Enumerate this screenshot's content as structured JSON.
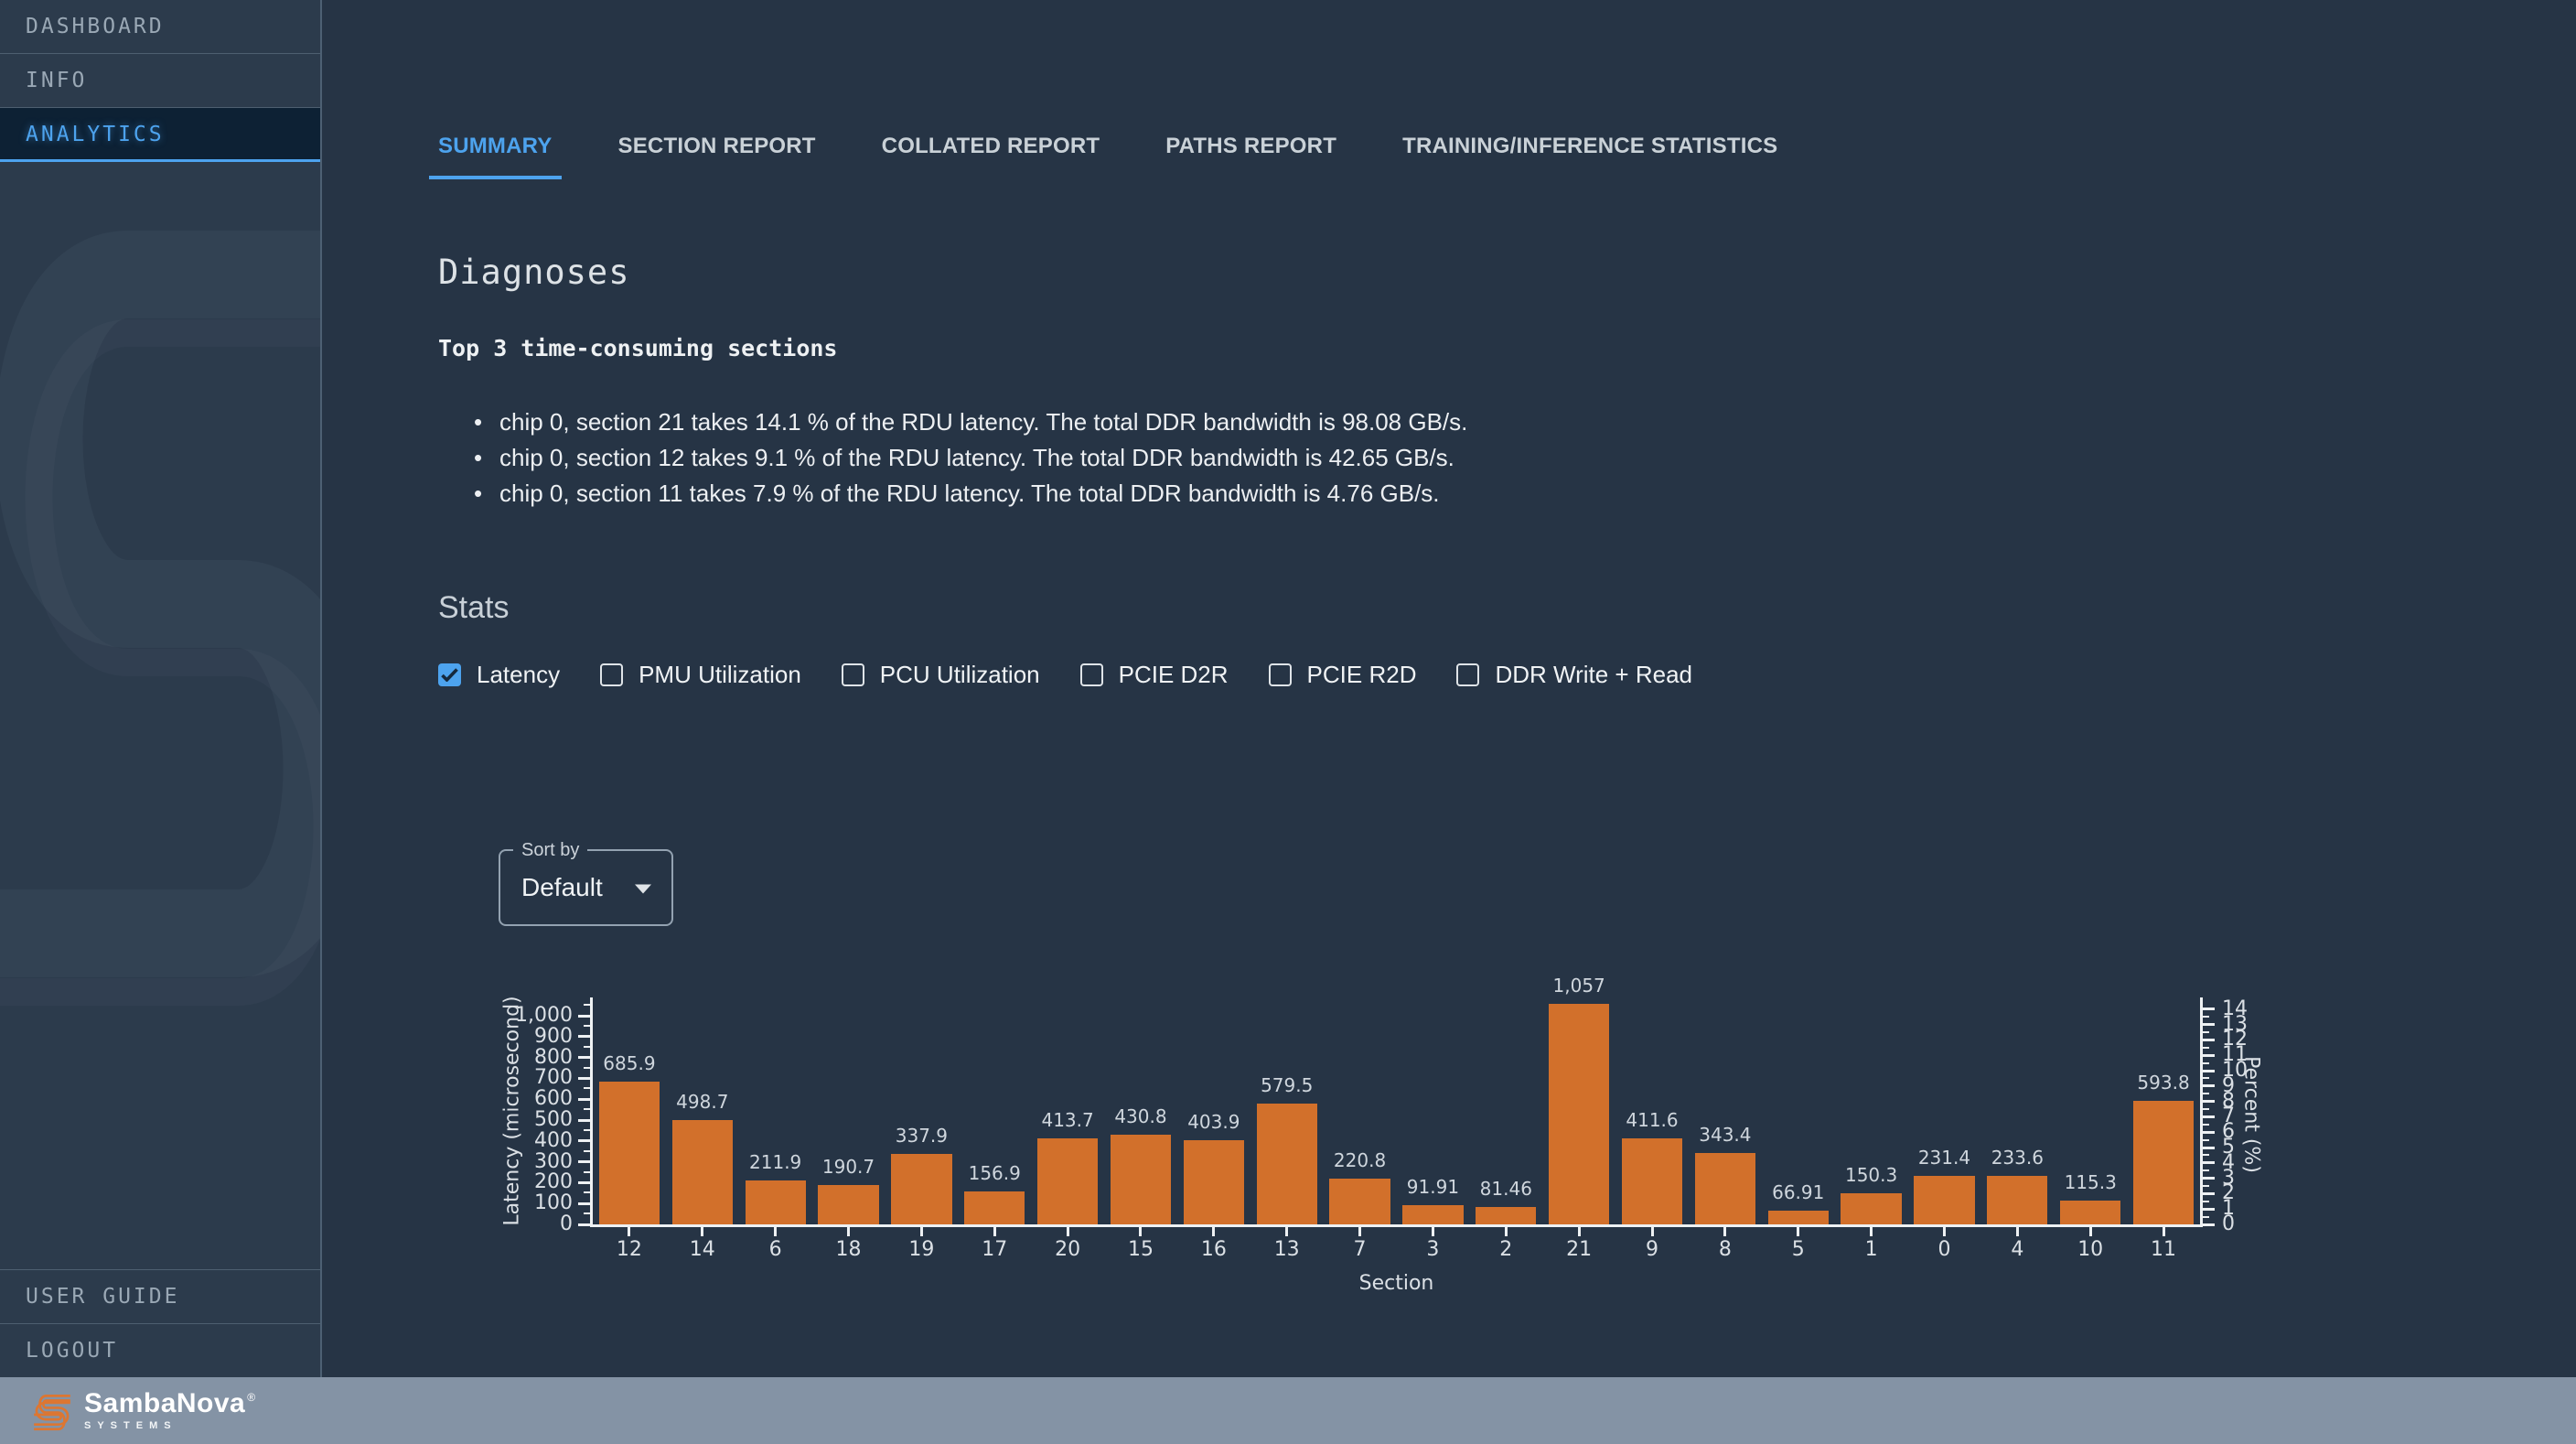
{
  "colors": {
    "accent_blue": "#4da3ee",
    "checkbox_blue": "#4da3ee",
    "bar_orange": "#d2702b",
    "footer_bg": "#8493a5"
  },
  "sidebar": {
    "items": [
      {
        "label": "DASHBOARD",
        "active": false
      },
      {
        "label": "INFO",
        "active": false
      },
      {
        "label": "ANALYTICS",
        "active": true
      }
    ],
    "bottom_items": [
      {
        "label": "USER GUIDE"
      },
      {
        "label": "LOGOUT"
      }
    ]
  },
  "tabs": [
    {
      "label": "SUMMARY",
      "active": true
    },
    {
      "label": "SECTION REPORT",
      "active": false
    },
    {
      "label": "COLLATED REPORT",
      "active": false
    },
    {
      "label": "PATHS REPORT",
      "active": false
    },
    {
      "label": "TRAINING/INFERENCE STATISTICS",
      "active": false
    }
  ],
  "diagnoses": {
    "title": "Diagnoses",
    "subtitle": "Top 3 time-consuming sections",
    "bullets": [
      "chip 0, section 21 takes 14.1 % of the RDU latency. The total DDR bandwidth is 98.08 GB/s.",
      "chip 0, section 12 takes 9.1 % of the RDU latency. The total DDR bandwidth is 42.65 GB/s.",
      "chip 0, section 11 takes 7.9 % of the RDU latency. The total DDR bandwidth is 4.76 GB/s."
    ]
  },
  "stats": {
    "title": "Stats",
    "checkboxes": [
      {
        "label": "Latency",
        "checked": true
      },
      {
        "label": "PMU Utilization",
        "checked": false
      },
      {
        "label": "PCU Utilization",
        "checked": false
      },
      {
        "label": "PCIE D2R",
        "checked": false
      },
      {
        "label": "PCIE R2D",
        "checked": false
      },
      {
        "label": "DDR Write + Read",
        "checked": false
      }
    ]
  },
  "sort": {
    "label": "Sort by",
    "value": "Default"
  },
  "chart_data": {
    "type": "bar",
    "title": "",
    "xlabel": "Section",
    "ylabel_left": "Latency (microsecond)",
    "ylabel_right": "Percent (%)",
    "categories": [
      "12",
      "14",
      "6",
      "18",
      "19",
      "17",
      "20",
      "15",
      "16",
      "13",
      "7",
      "3",
      "2",
      "21",
      "9",
      "8",
      "5",
      "1",
      "0",
      "4",
      "10",
      "11"
    ],
    "values": [
      685.9,
      498.7,
      211.9,
      190.7,
      337.9,
      156.9,
      413.7,
      430.8,
      403.9,
      579.5,
      220.8,
      91.91,
      81.46,
      1057,
      411.6,
      343.4,
      66.91,
      150.3,
      231.4,
      233.6,
      115.3,
      593.8
    ],
    "bar_labels": [
      "685.9",
      "498.7",
      "211.9",
      "190.7",
      "337.9",
      "156.9",
      "413.7",
      "430.8",
      "403.9",
      "579.5",
      "220.8",
      "91.91",
      "81.46",
      "1,057",
      "411.6",
      "343.4",
      "66.91",
      "150.3",
      "231.4",
      "233.6",
      "115.3",
      "593.8"
    ],
    "ylim_left": [
      0,
      1000
    ],
    "ytick_step_left": 100,
    "ytick_labels_left": [
      "0",
      "100",
      "200",
      "300",
      "400",
      "500",
      "600",
      "700",
      "800",
      "900",
      "1,000"
    ],
    "ylim_right": [
      0,
      14
    ],
    "ytick_step_right": 1,
    "ytick_labels_right": [
      "0",
      "1",
      "2",
      "3",
      "4",
      "5",
      "6",
      "7",
      "8",
      "9",
      "10",
      "11",
      "12",
      "13",
      "14"
    ],
    "grid": false,
    "legend": null,
    "bar_color": "#d2702b"
  },
  "footer": {
    "brand": "SambaNova",
    "registered": "®",
    "sub": "SYSTEMS"
  }
}
